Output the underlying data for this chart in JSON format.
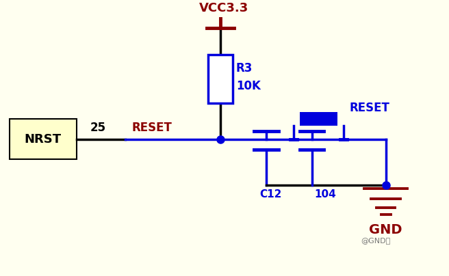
{
  "bg_color": "#fffff0",
  "blue": "#0000dd",
  "dark_red": "#8b0000",
  "black": "#000000",
  "yellow_box": "#ffffcc",
  "figsize": [
    6.56,
    4.04
  ],
  "dpi": 100,
  "nrst_label": "NRST",
  "pin25_label": "25",
  "reset_label": "RESET",
  "vcc_label": "VCC3.3",
  "r3_label": "R3",
  "r3_val": "10K",
  "c12_label": "C12",
  "c104_label": "104",
  "reset_btn_label": "RESET",
  "gnd_label": "GND",
  "watermark": "@GND客"
}
